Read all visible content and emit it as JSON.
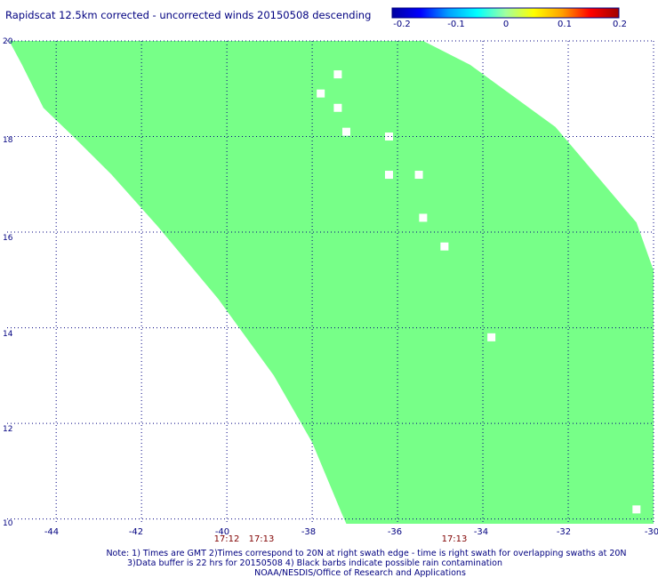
{
  "header": {
    "title": "Rapidscat 12.5km corrected - uncorrected winds 20150508 descending"
  },
  "colorbar": {
    "tick_labels": [
      "-0.2",
      "-0.1",
      "0",
      "0.1",
      "0.2"
    ],
    "colors": [
      "#0000a0",
      "#0000ff",
      "#00a0ff",
      "#00ffff",
      "#a0ffa0",
      "#ffff00",
      "#ffa000",
      "#ff0000",
      "#a00000"
    ]
  },
  "map": {
    "fill_color": "#77ff88",
    "grid_color": "#000080",
    "lat_labels": [
      "20",
      "18",
      "16",
      "14",
      "12",
      "10"
    ],
    "lon_labels": [
      "-44",
      "-42",
      "-40",
      "-38",
      "-36",
      "-34",
      "-32",
      "-30"
    ],
    "swath_times": [
      "17:12",
      "17:13",
      "17:13"
    ],
    "swath_time_color": "#800000",
    "swath_left_edge": [
      [
        -45.1,
        20.0
      ],
      [
        -44.8,
        19.5
      ],
      [
        -44.3,
        18.6
      ],
      [
        -43.6,
        18.0
      ],
      [
        -42.7,
        17.2
      ],
      [
        -41.6,
        16.1
      ],
      [
        -40.2,
        14.6
      ],
      [
        -38.9,
        13.0
      ],
      [
        -38.0,
        11.6
      ],
      [
        -37.3,
        10.1
      ],
      [
        -37.2,
        9.9
      ]
    ],
    "swath_right_edge": [
      [
        -35.4,
        20.0
      ],
      [
        -34.3,
        19.5
      ],
      [
        -32.3,
        18.2
      ],
      [
        -30.4,
        16.2
      ],
      [
        -30.0,
        15.2
      ],
      [
        -30.0,
        9.9
      ]
    ],
    "data_gaps": [
      [
        -37.4,
        19.3
      ],
      [
        -37.8,
        18.9
      ],
      [
        -37.4,
        18.6
      ],
      [
        -37.2,
        18.1
      ],
      [
        -36.2,
        18.0
      ],
      [
        -36.2,
        17.2
      ],
      [
        -35.5,
        17.2
      ],
      [
        -35.4,
        16.3
      ],
      [
        -34.9,
        15.7
      ],
      [
        -33.8,
        13.8
      ],
      [
        -30.4,
        10.2
      ]
    ]
  },
  "footer": {
    "note_line1": "Note: 1) Times are GMT 2)Times correspond to 20N at right swath edge - time is right swath for overlapping swaths at 20N",
    "note_line2": "3)Data buffer is 22 hrs for 20150508 4) Black barbs indicate possible rain contamination",
    "credit": "NOAA/NESDIS/Office of Research and Applications"
  }
}
